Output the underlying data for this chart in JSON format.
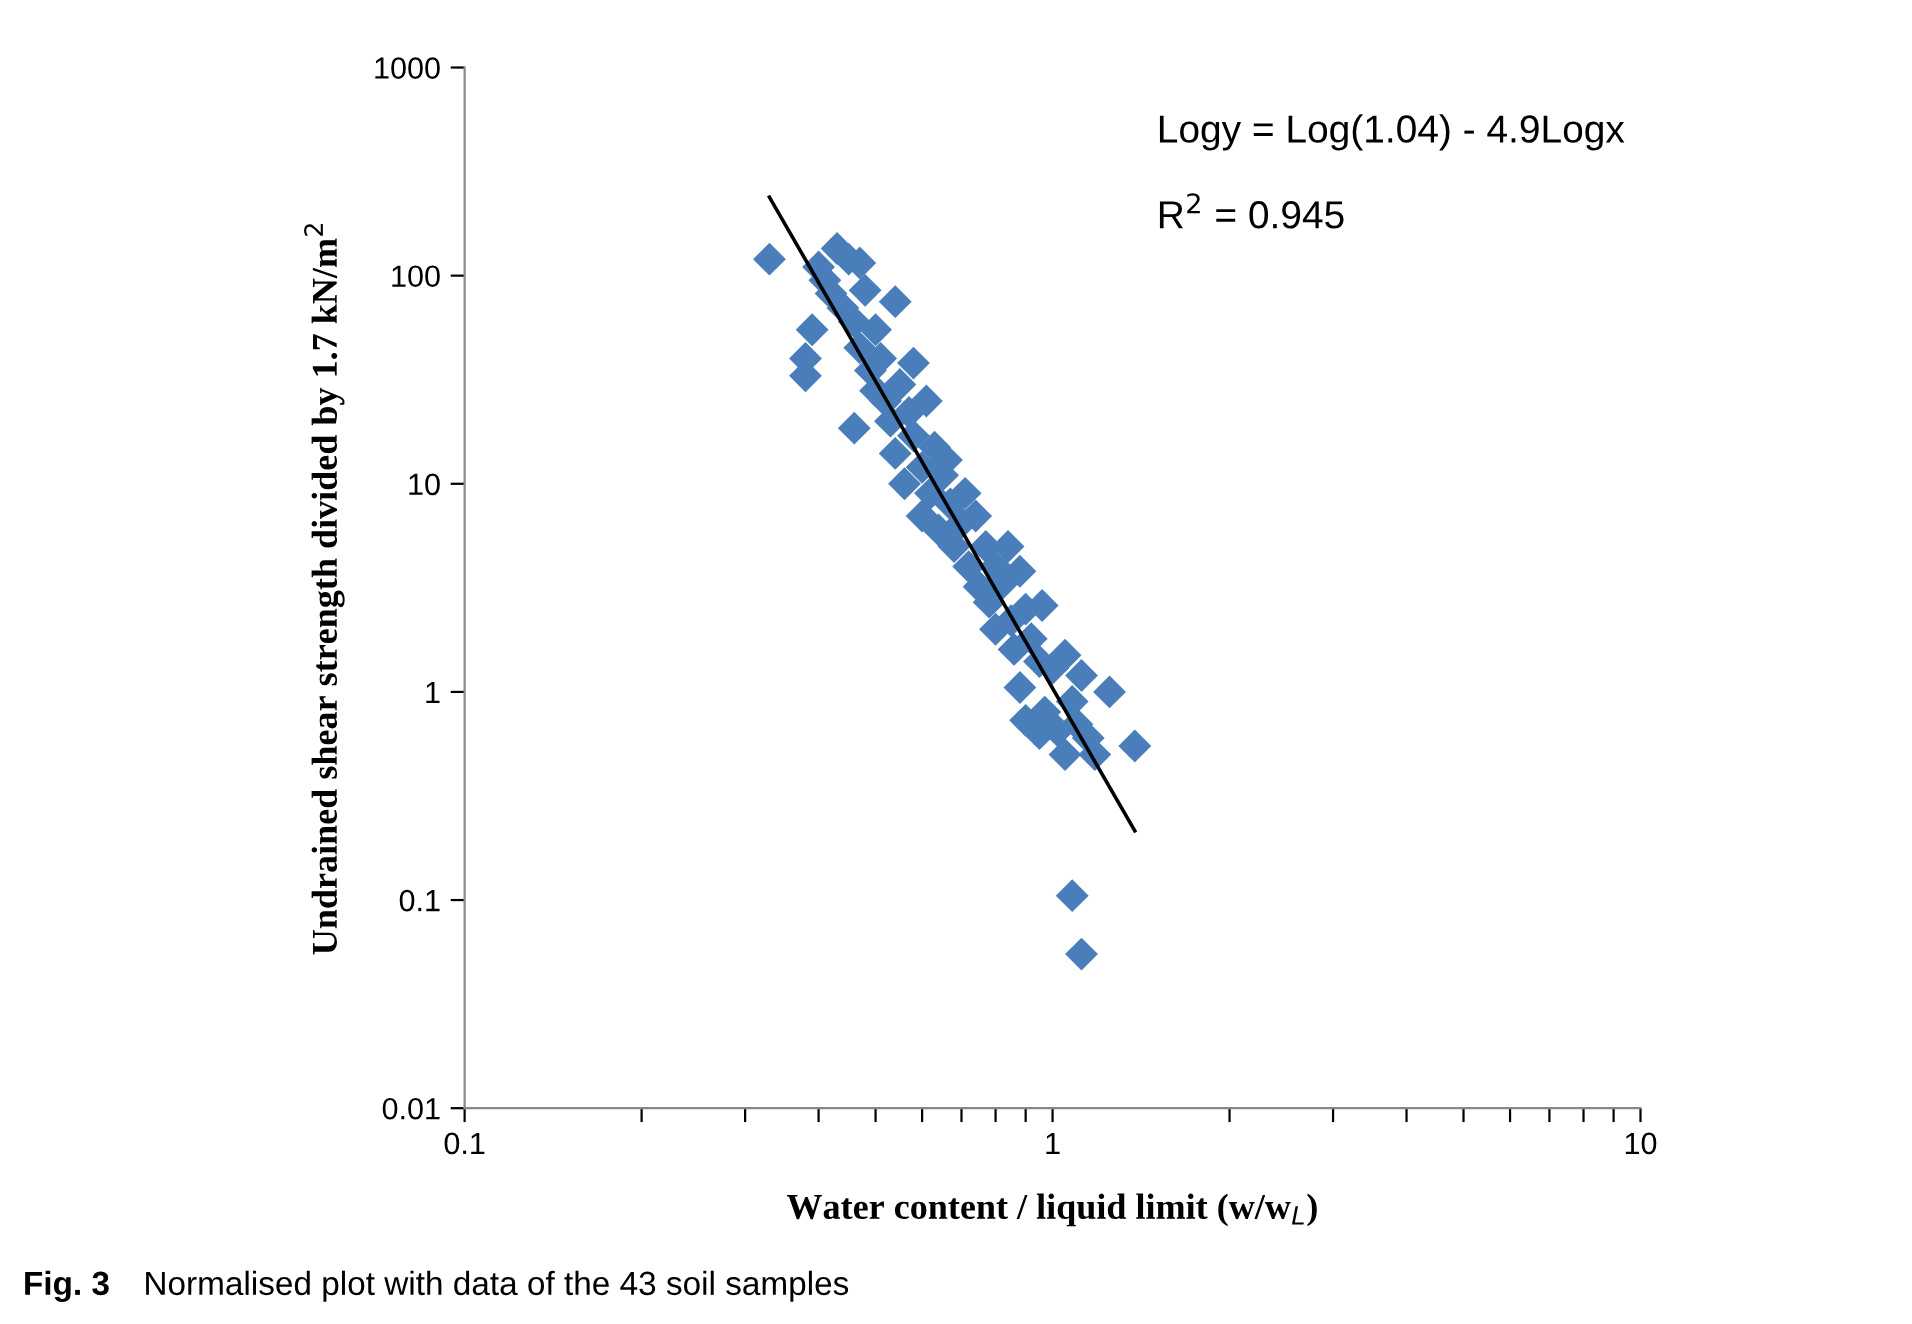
{
  "chart_data": {
    "type": "scatter",
    "xlabel": "Water content / liquid limit (w/w$_{L}$)",
    "ylabel": "Undrained shear strength divided by 1.7 kN/m$^{2}$",
    "log": "xy",
    "xlim": [
      0.1,
      10
    ],
    "ylim": [
      0.01,
      1000
    ],
    "xticks": [
      0.1,
      {
        "value": 0.2,
        "label": null
      },
      {
        "value": 0.3,
        "label": null
      },
      {
        "value": 0.4,
        "label": null
      },
      {
        "value": 0.5,
        "label": null
      },
      {
        "value": 0.6,
        "label": null
      },
      {
        "value": 0.7,
        "label": null
      },
      {
        "value": 0.8,
        "label": null
      },
      {
        "value": 0.9,
        "label": null
      },
      1,
      {
        "value": 2,
        "label": null
      },
      {
        "value": 3,
        "label": null
      },
      {
        "value": 4,
        "label": null
      },
      {
        "value": 5,
        "label": null
      },
      {
        "value": 6,
        "label": null
      },
      {
        "value": 7,
        "label": null
      },
      {
        "value": 8,
        "label": null
      },
      {
        "value": 9,
        "label": null
      },
      10
    ],
    "yticks": [
      0.01,
      0.1,
      1,
      10,
      100,
      1000
    ],
    "grid": false,
    "series": [
      {
        "marker": "diamond",
        "color": "#4a7ebb",
        "x": [
          0.33,
          0.38,
          0.38,
          0.39,
          0.4,
          0.41,
          0.42,
          0.43,
          0.44,
          0.45,
          0.46,
          0.46,
          0.47,
          0.47,
          0.48,
          0.49,
          0.5,
          0.5,
          0.51,
          0.52,
          0.54,
          0.53,
          0.54,
          0.55,
          0.56,
          0.57,
          0.58,
          0.58,
          0.6,
          0.6,
          0.61,
          0.62,
          0.63,
          0.64,
          0.65,
          0.66,
          0.67,
          0.68,
          0.7,
          0.71,
          0.72,
          0.74,
          0.75,
          0.77,
          0.78,
          0.8,
          0.8,
          0.82,
          0.84,
          0.85,
          0.86,
          0.88,
          0.88,
          0.9,
          0.92,
          0.95,
          0.96,
          0.97,
          1.0,
          1.02,
          1.05,
          1.05,
          1.08,
          1.1,
          1.12,
          1.15,
          1.18,
          1.25,
          1.38,
          1.08,
          1.12,
          0.9,
          0.95
        ],
        "values": [
          120,
          40,
          33,
          55,
          110,
          95,
          82,
          135,
          70,
          120,
          60,
          18.5,
          115,
          45,
          85,
          35,
          55,
          28,
          40,
          25,
          75,
          20,
          14,
          30,
          10,
          22,
          17,
          38,
          12,
          7,
          25,
          9,
          15,
          6,
          11,
          13,
          8,
          5,
          6.5,
          9,
          4,
          7,
          3.2,
          5,
          2.7,
          4,
          2.0,
          3.3,
          5,
          2.2,
          1.6,
          3.8,
          1.05,
          2.5,
          1.8,
          1.4,
          2.6,
          0.8,
          1.3,
          0.65,
          1.5,
          0.5,
          0.9,
          0.7,
          1.2,
          0.6,
          0.5,
          1.0,
          0.55,
          0.105,
          0.055,
          0.73,
          0.63
        ]
      },
      {
        "type": "line",
        "color": "#000000",
        "marker": "none",
        "line_style": "solid",
        "x": [
          0.33,
          1.38
        ],
        "values": [
          238,
          0.215
        ]
      }
    ],
    "annotations": [
      "Logy = Log(1.04) - 4.9Logx",
      "R$^{2}$ = 0.945",
      "Fig. 3",
      "Normalised plot with data of the 43 soil samples"
    ]
  }
}
